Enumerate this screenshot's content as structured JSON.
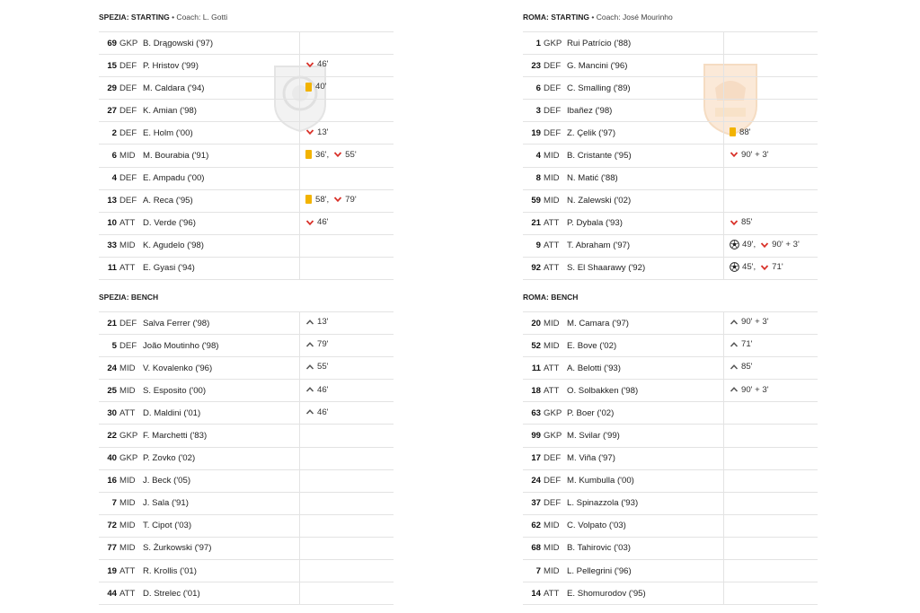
{
  "colors": {
    "sub_off": "#d9322a",
    "sub_on": "#555555",
    "yellow_card": "#f2b300",
    "divider": "#e3e3e3"
  },
  "spezia": {
    "starting": {
      "team": "SPEZIA:",
      "label": "STARTING",
      "coach": "• Coach: L. Gotti",
      "rows": [
        {
          "num": "69",
          "pos": "GKP",
          "name": "B. Drągowski ('97)",
          "events": []
        },
        {
          "num": "15",
          "pos": "DEF",
          "name": "P. Hristov ('99)",
          "events": [
            {
              "type": "sub_off",
              "text": "46'"
            }
          ]
        },
        {
          "num": "29",
          "pos": "DEF",
          "name": "M. Caldara ('94)",
          "events": [
            {
              "type": "yellow",
              "text": "40'"
            }
          ]
        },
        {
          "num": "27",
          "pos": "DEF",
          "name": "K. Amian ('98)",
          "events": []
        },
        {
          "num": "2",
          "pos": "DEF",
          "name": "E. Holm ('00)",
          "events": [
            {
              "type": "sub_off",
              "text": "13'"
            }
          ]
        },
        {
          "num": "6",
          "pos": "MID",
          "name": "M. Bourabia ('91)",
          "events": [
            {
              "type": "yellow",
              "text": "36',"
            },
            {
              "type": "sub_off",
              "text": "55'"
            }
          ]
        },
        {
          "num": "4",
          "pos": "DEF",
          "name": "E. Ampadu ('00)",
          "events": []
        },
        {
          "num": "13",
          "pos": "DEF",
          "name": "A. Reca ('95)",
          "events": [
            {
              "type": "yellow",
              "text": "58',"
            },
            {
              "type": "sub_off",
              "text": "79'"
            }
          ]
        },
        {
          "num": "10",
          "pos": "ATT",
          "name": "D. Verde ('96)",
          "events": [
            {
              "type": "sub_off",
              "text": "46'"
            }
          ]
        },
        {
          "num": "33",
          "pos": "MID",
          "name": "K. Agudelo ('98)",
          "events": []
        },
        {
          "num": "11",
          "pos": "ATT",
          "name": "E. Gyasi ('94)",
          "events": []
        }
      ]
    },
    "bench": {
      "team": "SPEZIA:",
      "label": "BENCH",
      "rows": [
        {
          "num": "21",
          "pos": "DEF",
          "name": "Salva Ferrer ('98)",
          "events": [
            {
              "type": "sub_on",
              "text": "13'"
            }
          ]
        },
        {
          "num": "5",
          "pos": "DEF",
          "name": "João Moutinho ('98)",
          "events": [
            {
              "type": "sub_on",
              "text": "79'"
            }
          ]
        },
        {
          "num": "24",
          "pos": "MID",
          "name": "V. Kovalenko ('96)",
          "events": [
            {
              "type": "sub_on",
              "text": "55'"
            }
          ]
        },
        {
          "num": "25",
          "pos": "MID",
          "name": "S. Esposito ('00)",
          "events": [
            {
              "type": "sub_on",
              "text": "46'"
            }
          ]
        },
        {
          "num": "30",
          "pos": "ATT",
          "name": "D. Maldini ('01)",
          "events": [
            {
              "type": "sub_on",
              "text": "46'"
            }
          ]
        },
        {
          "num": "22",
          "pos": "GKP",
          "name": "F. Marchetti ('83)",
          "events": []
        },
        {
          "num": "40",
          "pos": "GKP",
          "name": "P. Zovko ('02)",
          "events": []
        },
        {
          "num": "16",
          "pos": "MID",
          "name": "J. Beck ('05)",
          "events": []
        },
        {
          "num": "7",
          "pos": "MID",
          "name": "J. Sala ('91)",
          "events": []
        },
        {
          "num": "72",
          "pos": "MID",
          "name": "T. Cipot ('03)",
          "events": []
        },
        {
          "num": "77",
          "pos": "MID",
          "name": "S. Żurkowski ('97)",
          "events": []
        },
        {
          "num": "19",
          "pos": "ATT",
          "name": "R. Krollis ('01)",
          "events": []
        },
        {
          "num": "44",
          "pos": "ATT",
          "name": "D. Strelec ('01)",
          "events": []
        }
      ]
    }
  },
  "roma": {
    "starting": {
      "team": "ROMA:",
      "label": "STARTING",
      "coach": "• Coach: José Mourinho",
      "rows": [
        {
          "num": "1",
          "pos": "GKP",
          "name": "Rui Patrício ('88)",
          "events": []
        },
        {
          "num": "23",
          "pos": "DEF",
          "name": "G. Mancini ('96)",
          "events": []
        },
        {
          "num": "6",
          "pos": "DEF",
          "name": "C. Smalling ('89)",
          "events": []
        },
        {
          "num": "3",
          "pos": "DEF",
          "name": "Ibañez ('98)",
          "events": []
        },
        {
          "num": "19",
          "pos": "DEF",
          "name": "Z. Çelik ('97)",
          "events": [
            {
              "type": "yellow",
              "text": "88'"
            }
          ]
        },
        {
          "num": "4",
          "pos": "MID",
          "name": "B. Cristante ('95)",
          "events": [
            {
              "type": "sub_off",
              "text": "90' + 3'"
            }
          ]
        },
        {
          "num": "8",
          "pos": "MID",
          "name": "N. Matić ('88)",
          "events": []
        },
        {
          "num": "59",
          "pos": "MID",
          "name": "N. Zalewski ('02)",
          "events": []
        },
        {
          "num": "21",
          "pos": "ATT",
          "name": "P. Dybala ('93)",
          "events": [
            {
              "type": "sub_off",
              "text": "85'"
            }
          ]
        },
        {
          "num": "9",
          "pos": "ATT",
          "name": "T. Abraham ('97)",
          "events": [
            {
              "type": "goal",
              "text": "49',"
            },
            {
              "type": "sub_off",
              "text": "90' + 3'"
            }
          ]
        },
        {
          "num": "92",
          "pos": "ATT",
          "name": "S. El Shaarawy ('92)",
          "events": [
            {
              "type": "goal",
              "text": "45',"
            },
            {
              "type": "sub_off",
              "text": "71'"
            }
          ]
        }
      ]
    },
    "bench": {
      "team": "ROMA:",
      "label": "BENCH",
      "rows": [
        {
          "num": "20",
          "pos": "MID",
          "name": "M. Camara ('97)",
          "events": [
            {
              "type": "sub_on",
              "text": "90' + 3'"
            }
          ]
        },
        {
          "num": "52",
          "pos": "MID",
          "name": "E. Bove ('02)",
          "events": [
            {
              "type": "sub_on",
              "text": "71'"
            }
          ]
        },
        {
          "num": "11",
          "pos": "ATT",
          "name": "A. Belotti ('93)",
          "events": [
            {
              "type": "sub_on",
              "text": "85'"
            }
          ]
        },
        {
          "num": "18",
          "pos": "ATT",
          "name": "O. Solbakken ('98)",
          "events": [
            {
              "type": "sub_on",
              "text": "90' + 3'"
            }
          ]
        },
        {
          "num": "63",
          "pos": "GKP",
          "name": "P. Boer ('02)",
          "events": []
        },
        {
          "num": "99",
          "pos": "GKP",
          "name": "M. Svilar ('99)",
          "events": []
        },
        {
          "num": "17",
          "pos": "DEF",
          "name": "M. Viña ('97)",
          "events": []
        },
        {
          "num": "24",
          "pos": "DEF",
          "name": "M. Kumbulla ('00)",
          "events": []
        },
        {
          "num": "37",
          "pos": "DEF",
          "name": "L. Spinazzola ('93)",
          "events": []
        },
        {
          "num": "62",
          "pos": "MID",
          "name": "C. Volpato ('03)",
          "events": []
        },
        {
          "num": "68",
          "pos": "MID",
          "name": "B. Tahirovic ('03)",
          "events": []
        },
        {
          "num": "7",
          "pos": "MID",
          "name": "L. Pellegrini ('96)",
          "events": []
        },
        {
          "num": "14",
          "pos": "ATT",
          "name": "E. Shomurodov ('95)",
          "events": []
        }
      ]
    }
  }
}
